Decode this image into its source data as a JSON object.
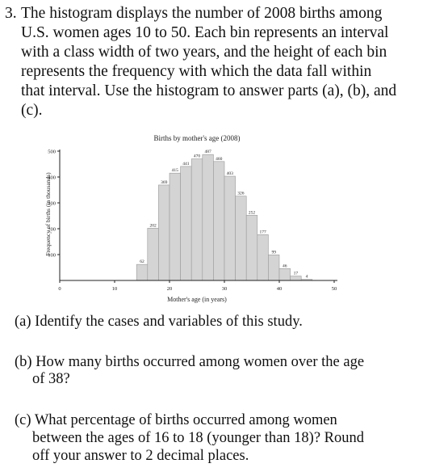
{
  "problem": {
    "number": "3.",
    "intro_lines": [
      "The histogram displays the number of 2008 births among",
      "U.S. women ages 10 to 50. Each bin represents an interval",
      "with a class width of two years, and the height of each bin",
      "represents the frequency with which the data fall within",
      "that interval. Use the histogram to answer parts (a), (b), and",
      "(c)."
    ],
    "part_a": "(a) Identify the cases and variables of this study.",
    "part_b_lines": [
      "(b) How many births occurred among women over the age",
      "of 38?"
    ],
    "part_c_lines": [
      "(c) What percentage of births occurred among women",
      "between the ages of 16 to 18 (younger than 18)? Round",
      "off your answer to 2 decimal places."
    ]
  },
  "chart_data": {
    "type": "bar",
    "title": "Births by mother's age (2008)",
    "xlabel": "Mother's age (in years)",
    "ylabel": "Frequency of births (in thousands)",
    "bin_width": 2,
    "bins": [
      {
        "start": 14,
        "value": 62
      },
      {
        "start": 16,
        "value": 202
      },
      {
        "start": 18,
        "value": 369
      },
      {
        "start": 20,
        "value": 415
      },
      {
        "start": 22,
        "value": 441
      },
      {
        "start": 24,
        "value": 470
      },
      {
        "start": 26,
        "value": 487
      },
      {
        "start": 28,
        "value": 460
      },
      {
        "start": 30,
        "value": 403
      },
      {
        "start": 32,
        "value": 326
      },
      {
        "start": 34,
        "value": 252
      },
      {
        "start": 36,
        "value": 177
      },
      {
        "start": 38,
        "value": 99
      },
      {
        "start": 40,
        "value": 46
      },
      {
        "start": 42,
        "value": 17
      },
      {
        "start": 44,
        "value": 4
      }
    ],
    "x_ticks": [
      "0",
      "10",
      "20",
      "30",
      "40",
      "50"
    ],
    "y_ticks": [
      "100",
      "200",
      "300",
      "400",
      "500"
    ],
    "xlim": [
      0,
      50
    ],
    "ylim": [
      0,
      500
    ],
    "grid": false,
    "bar_color": "#d4d4d4",
    "bar_edge_color": "#9a9a9a"
  }
}
